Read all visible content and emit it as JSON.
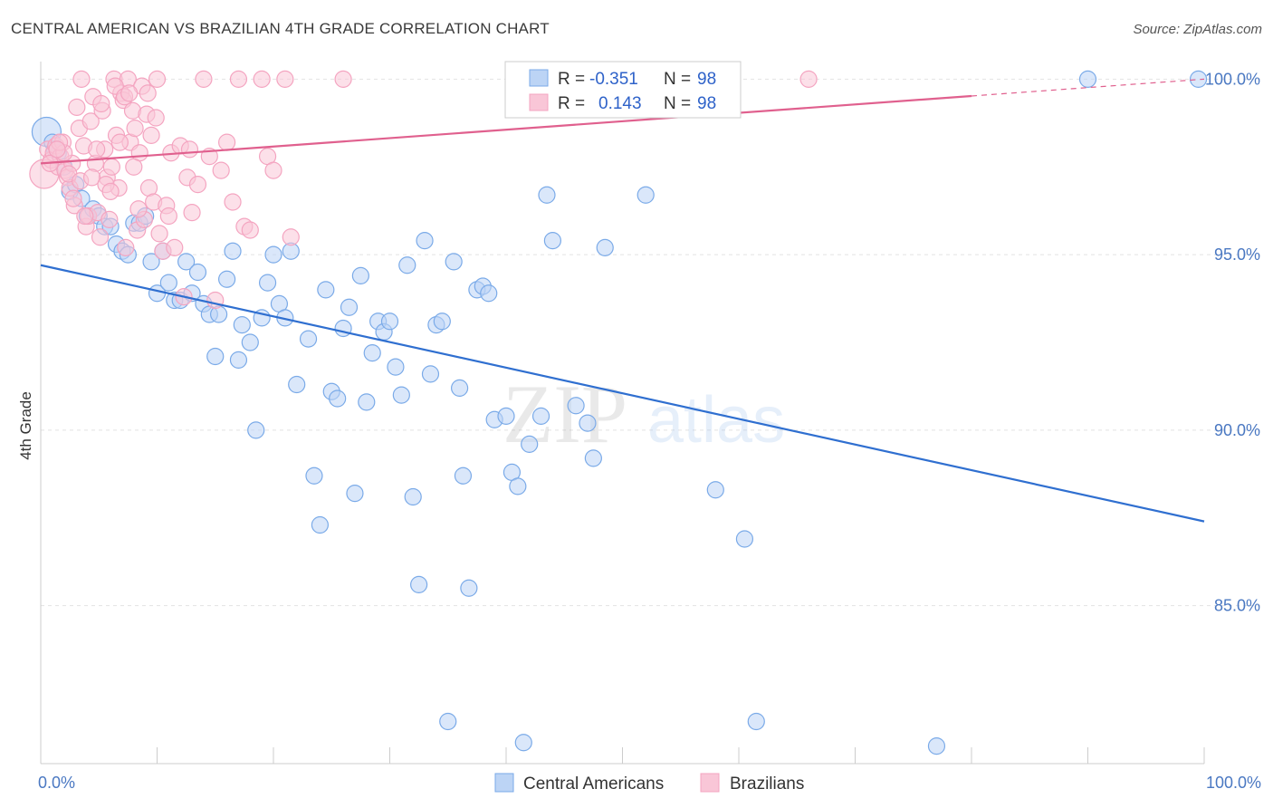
{
  "title": "CENTRAL AMERICAN VS BRAZILIAN 4TH GRADE CORRELATION CHART",
  "source": "Source: ZipAtlas.com",
  "watermark": {
    "zip": "ZIP",
    "atlas": "atlas"
  },
  "chart_data": {
    "type": "scatter",
    "ylabel": "4th Grade",
    "xlim": [
      0,
      100
    ],
    "ylim": [
      80.5,
      100.5
    ],
    "x_ticks": [
      {
        "value": 0,
        "label": "0.0%"
      },
      {
        "value": 100,
        "label": "100.0%"
      }
    ],
    "y_ticks": [
      {
        "value": 100,
        "label": "100.0%"
      },
      {
        "value": 95,
        "label": "95.0%"
      },
      {
        "value": 90,
        "label": "90.0%"
      },
      {
        "value": 85,
        "label": "85.0%"
      }
    ],
    "grid": true,
    "legend": {
      "placement": "top-center",
      "rows": [
        {
          "r_label": "R =",
          "r_value": "-0.351",
          "n_label": "N =",
          "n_value": "98"
        },
        {
          "r_label": "R =",
          "r_value": "0.143",
          "n_label": "N =",
          "n_value": "98"
        }
      ]
    },
    "series": [
      {
        "name": "Central Americans",
        "color": "#7aaae8",
        "trend_color": "#2f6fd0",
        "trend": {
          "x": [
            0,
            100
          ],
          "y": [
            94.7,
            87.4
          ]
        },
        "points": [
          [
            0.5,
            98.5
          ],
          [
            1,
            98.2
          ],
          [
            1.5,
            97.9
          ],
          [
            2,
            97.5
          ],
          [
            2.5,
            96.8
          ],
          [
            3,
            97.0
          ],
          [
            3.5,
            96.6
          ],
          [
            4,
            96.1
          ],
          [
            4.5,
            96.3
          ],
          [
            5,
            96.1
          ],
          [
            5.5,
            95.8
          ],
          [
            6,
            95.8
          ],
          [
            6.5,
            95.3
          ],
          [
            7,
            95.1
          ],
          [
            7.5,
            95.0
          ],
          [
            8,
            95.9
          ],
          [
            8.5,
            95.9
          ],
          [
            9,
            96.1
          ],
          [
            9.5,
            94.8
          ],
          [
            10,
            93.9
          ],
          [
            10.5,
            95.1
          ],
          [
            11,
            94.2
          ],
          [
            11.5,
            93.7
          ],
          [
            12,
            93.7
          ],
          [
            12.5,
            94.8
          ],
          [
            13,
            93.9
          ],
          [
            13.5,
            94.5
          ],
          [
            14,
            93.6
          ],
          [
            14.5,
            93.3
          ],
          [
            15,
            92.1
          ],
          [
            15.3,
            93.3
          ],
          [
            16,
            94.3
          ],
          [
            16.5,
            95.1
          ],
          [
            17,
            92.0
          ],
          [
            17.3,
            93.0
          ],
          [
            18,
            92.5
          ],
          [
            18.5,
            90.0
          ],
          [
            19,
            93.2
          ],
          [
            19.5,
            94.2
          ],
          [
            20,
            95.0
          ],
          [
            20.5,
            93.6
          ],
          [
            21,
            93.2
          ],
          [
            21.5,
            95.1
          ],
          [
            22,
            91.3
          ],
          [
            23,
            92.6
          ],
          [
            23.5,
            88.7
          ],
          [
            24,
            87.3
          ],
          [
            24.5,
            94.0
          ],
          [
            25,
            91.1
          ],
          [
            25.5,
            90.9
          ],
          [
            26,
            92.9
          ],
          [
            26.5,
            93.5
          ],
          [
            27,
            88.2
          ],
          [
            27.5,
            94.4
          ],
          [
            28,
            90.8
          ],
          [
            28.5,
            92.2
          ],
          [
            29,
            93.1
          ],
          [
            29.5,
            92.8
          ],
          [
            30,
            93.1
          ],
          [
            30.5,
            91.8
          ],
          [
            31,
            91.0
          ],
          [
            31.5,
            94.7
          ],
          [
            32,
            88.1
          ],
          [
            32.5,
            85.6
          ],
          [
            33,
            95.4
          ],
          [
            33.5,
            91.6
          ],
          [
            34,
            93.0
          ],
          [
            34.5,
            93.1
          ],
          [
            35,
            81.7
          ],
          [
            35.5,
            94.8
          ],
          [
            36,
            91.2
          ],
          [
            36.3,
            88.7
          ],
          [
            36.8,
            85.5
          ],
          [
            37.5,
            94.0
          ],
          [
            38,
            94.1
          ],
          [
            38.5,
            93.9
          ],
          [
            39,
            90.3
          ],
          [
            40,
            90.4
          ],
          [
            40.5,
            88.8
          ],
          [
            41,
            88.4
          ],
          [
            41.5,
            81.1
          ],
          [
            42,
            89.6
          ],
          [
            43,
            90.4
          ],
          [
            43.5,
            96.7
          ],
          [
            44,
            95.4
          ],
          [
            46,
            90.7
          ],
          [
            47,
            90.2
          ],
          [
            47.5,
            89.2
          ],
          [
            48.5,
            95.2
          ],
          [
            52,
            96.7
          ],
          [
            58,
            88.3
          ],
          [
            60.5,
            86.9
          ],
          [
            61.5,
            81.7
          ],
          [
            77,
            81.0
          ],
          [
            90,
            100.0
          ],
          [
            99.5,
            100.0
          ],
          [
            46.5,
            100.0
          ],
          [
            1.2,
            98.0
          ]
        ]
      },
      {
        "name": "Brazilians",
        "color": "#f4a4c0",
        "trend_color": "#e0608e",
        "trend": {
          "x": [
            0,
            100
          ],
          "y": [
            97.6,
            100.0
          ]
        },
        "points": [
          [
            0.3,
            97.3
          ],
          [
            0.6,
            98.0
          ],
          [
            0.9,
            97.7
          ],
          [
            1.1,
            97.9
          ],
          [
            1.3,
            98.1
          ],
          [
            1.5,
            97.5
          ],
          [
            1.7,
            97.8
          ],
          [
            1.9,
            98.2
          ],
          [
            2.1,
            97.4
          ],
          [
            2.3,
            97.2
          ],
          [
            2.5,
            96.9
          ],
          [
            2.7,
            97.6
          ],
          [
            2.9,
            96.4
          ],
          [
            3.1,
            99.2
          ],
          [
            3.3,
            98.6
          ],
          [
            3.5,
            100.0
          ],
          [
            3.7,
            98.1
          ],
          [
            3.9,
            95.8
          ],
          [
            4.1,
            96.1
          ],
          [
            4.3,
            98.8
          ],
          [
            4.5,
            99.5
          ],
          [
            4.7,
            97.6
          ],
          [
            4.9,
            96.2
          ],
          [
            5.1,
            95.5
          ],
          [
            5.3,
            99.1
          ],
          [
            5.5,
            98.0
          ],
          [
            5.7,
            97.2
          ],
          [
            5.9,
            96.0
          ],
          [
            6.1,
            97.5
          ],
          [
            6.3,
            100.0
          ],
          [
            6.5,
            98.4
          ],
          [
            6.7,
            96.9
          ],
          [
            6.9,
            99.6
          ],
          [
            7.1,
            99.4
          ],
          [
            7.3,
            95.2
          ],
          [
            7.5,
            100.0
          ],
          [
            7.7,
            98.2
          ],
          [
            7.9,
            99.1
          ],
          [
            8.1,
            98.6
          ],
          [
            8.3,
            95.7
          ],
          [
            8.5,
            97.9
          ],
          [
            8.7,
            99.8
          ],
          [
            8.9,
            96.0
          ],
          [
            9.1,
            99.0
          ],
          [
            9.3,
            96.9
          ],
          [
            9.5,
            98.4
          ],
          [
            9.7,
            96.5
          ],
          [
            9.9,
            98.9
          ],
          [
            10.2,
            95.6
          ],
          [
            10.5,
            95.1
          ],
          [
            10.8,
            96.4
          ],
          [
            11.2,
            97.9
          ],
          [
            11.5,
            95.2
          ],
          [
            12,
            98.1
          ],
          [
            12.3,
            93.8
          ],
          [
            12.6,
            97.2
          ],
          [
            13,
            96.2
          ],
          [
            14,
            100.0
          ],
          [
            14.5,
            97.8
          ],
          [
            15,
            93.7
          ],
          [
            15.5,
            97.4
          ],
          [
            16,
            98.2
          ],
          [
            17,
            100.0
          ],
          [
            17.5,
            95.8
          ],
          [
            18,
            95.7
          ],
          [
            19,
            100.0
          ],
          [
            19.5,
            97.8
          ],
          [
            21,
            100.0
          ],
          [
            21.5,
            95.5
          ],
          [
            26,
            100.0
          ],
          [
            52,
            100.0
          ],
          [
            66,
            100.0
          ],
          [
            2.0,
            97.9
          ],
          [
            1.6,
            98.2
          ],
          [
            2.4,
            97.3
          ],
          [
            2.8,
            96.6
          ],
          [
            3.4,
            97.1
          ],
          [
            3.8,
            96.1
          ],
          [
            4.4,
            97.2
          ],
          [
            4.8,
            98.0
          ],
          [
            5.2,
            99.3
          ],
          [
            5.6,
            97.0
          ],
          [
            6.0,
            96.8
          ],
          [
            6.4,
            99.8
          ],
          [
            6.8,
            98.2
          ],
          [
            7.2,
            99.5
          ],
          [
            7.6,
            99.6
          ],
          [
            8.0,
            97.5
          ],
          [
            8.4,
            96.3
          ],
          [
            9.2,
            99.6
          ],
          [
            10.0,
            100.0
          ],
          [
            11.0,
            96.1
          ],
          [
            12.8,
            98.0
          ],
          [
            13.5,
            97.0
          ],
          [
            16.5,
            96.5
          ],
          [
            20,
            97.4
          ],
          [
            0.8,
            97.6
          ],
          [
            1.4,
            98.0
          ]
        ]
      }
    ]
  },
  "bottom_legend": [
    "Central Americans",
    "Brazilians"
  ]
}
